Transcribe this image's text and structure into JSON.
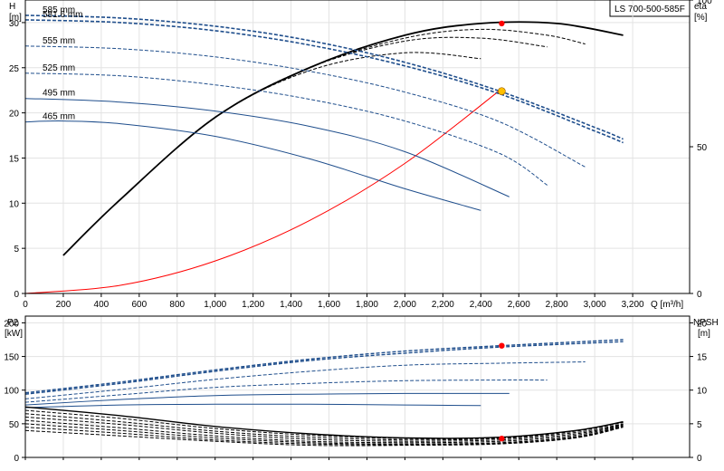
{
  "model_label": "LS 700-500-585F",
  "colors": {
    "curve_blue": "#1f4e8c",
    "efficiency": "#000000",
    "system_curve": "#ff0000",
    "duty_point": "#ff0000",
    "duty_point_head": "#ffc000"
  },
  "chart_data": [
    {
      "type": "line",
      "title": "",
      "xlabel": "Q [m³/h]",
      "ylabel_left": [
        "H",
        "[m]"
      ],
      "ylabel_right": [
        "eta",
        "[%]"
      ],
      "xlim": [
        0,
        3500
      ],
      "ylim_left": [
        0,
        32.5
      ],
      "ylim_right": [
        0,
        100
      ],
      "x_ticks": [
        0,
        200,
        400,
        600,
        800,
        1000,
        1200,
        1400,
        1600,
        1800,
        2000,
        2200,
        2400,
        2600,
        2800,
        3000,
        3200
      ],
      "x_tick_labels": [
        "0",
        "200",
        "400",
        "600",
        "800",
        "1,000",
        "1,200",
        "1,400",
        "1,600",
        "1,800",
        "2,000",
        "2,200",
        "2,400",
        "2,600",
        "2,800",
        "3,000",
        "3,200"
      ],
      "y_ticks_left": [
        0,
        5,
        10,
        15,
        20,
        25,
        30
      ],
      "y_ticks_right": [
        0,
        50,
        100
      ],
      "grid": true,
      "head_curves": [
        {
          "name": "585 mm",
          "x": [
            0,
            500,
            1000,
            1500,
            2000,
            2500,
            3000,
            3150
          ],
          "y": [
            30.8,
            30.5,
            29.6,
            28.0,
            25.6,
            22.4,
            18.4,
            17.1
          ]
        },
        {
          "name": "581.6 mm",
          "x": [
            0,
            500,
            1000,
            1500,
            2000,
            2500,
            3000,
            3150
          ],
          "y": [
            30.3,
            30.0,
            29.1,
            27.5,
            25.2,
            22.1,
            18.0,
            16.7
          ]
        },
        {
          "name": "555 mm",
          "x": [
            0,
            500,
            1000,
            1500,
            2000,
            2500,
            2950
          ],
          "y": [
            27.4,
            27.1,
            26.2,
            24.6,
            22.3,
            19.0,
            14.0
          ]
        },
        {
          "name": "525 mm",
          "x": [
            0,
            500,
            1000,
            1500,
            2000,
            2500,
            2750
          ],
          "y": [
            24.4,
            24.1,
            23.1,
            21.5,
            19.1,
            15.5,
            12.0
          ]
        },
        {
          "name": "495 mm",
          "x": [
            0,
            500,
            1000,
            1500,
            2000,
            2550
          ],
          "y": [
            21.6,
            21.2,
            20.2,
            18.5,
            15.7,
            10.7
          ]
        },
        {
          "name": "465 mm",
          "x": [
            0,
            200,
            500,
            1000,
            1500,
            2000,
            2400
          ],
          "y": [
            19.0,
            19.1,
            18.8,
            17.4,
            14.9,
            11.6,
            9.2
          ]
        }
      ],
      "system_curve": {
        "x": [
          0,
          500,
          1000,
          1500,
          2000,
          2500
        ],
        "y": [
          0,
          0.9,
          3.6,
          8.1,
          14.4,
          22.5
        ]
      },
      "efficiency_curves": [
        {
          "x": [
            200,
            500,
            1000,
            1500,
            2000,
            2400,
            2800,
            3150
          ],
          "y": [
            13,
            32,
            60,
            77,
            88,
            92,
            92,
            88
          ]
        },
        {
          "x": [
            200,
            500,
            1000,
            1500,
            2000,
            2400,
            2750,
            2950
          ],
          "y": [
            13,
            32,
            60,
            77,
            87,
            90,
            88,
            85
          ]
        },
        {
          "x": [
            200,
            500,
            1000,
            1500,
            2000,
            2400,
            2750
          ],
          "y": [
            13,
            32,
            60,
            77,
            86,
            87,
            84
          ]
        },
        {
          "x": [
            200,
            500,
            1000,
            1500,
            2000,
            2400
          ],
          "y": [
            13,
            32,
            60,
            76,
            82,
            80
          ]
        }
      ],
      "duty_point": {
        "q": 2510,
        "head": 22.4,
        "efficiency": 92
      }
    },
    {
      "type": "line",
      "title": "",
      "ylabel_left": [
        "P2",
        "[kW]"
      ],
      "ylabel_right": [
        "NPSH",
        "[m]"
      ],
      "xlim": [
        0,
        3500
      ],
      "ylim_left": [
        0,
        210
      ],
      "ylim_right": [
        0,
        21
      ],
      "y_ticks_left": [
        0,
        50,
        100,
        150,
        200
      ],
      "y_ticks_right": [
        0,
        5,
        10,
        15,
        20
      ],
      "grid": true,
      "power_curves": [
        {
          "x": [
            0,
            500,
            1000,
            1500,
            2000,
            2500,
            3150
          ],
          "y": [
            96,
            112,
            130,
            146,
            158,
            166,
            175
          ]
        },
        {
          "x": [
            0,
            500,
            1000,
            1500,
            2000,
            2500,
            3150
          ],
          "y": [
            94,
            110,
            128,
            144,
            155,
            164,
            172
          ]
        },
        {
          "x": [
            0,
            500,
            1000,
            1500,
            2000,
            2500,
            2950
          ],
          "y": [
            87,
            101,
            116,
            128,
            137,
            140,
            142
          ]
        },
        {
          "x": [
            0,
            500,
            1000,
            1500,
            2000,
            2500,
            2750
          ],
          "y": [
            82,
            93,
            104,
            110,
            114,
            115,
            115
          ]
        },
        {
          "x": [
            0,
            500,
            1000,
            1500,
            2000,
            2550
          ],
          "y": [
            78,
            86,
            92,
            94,
            95,
            95
          ]
        },
        {
          "x": [
            0,
            500,
            1000,
            1500,
            2000,
            2400
          ],
          "y": [
            74,
            78,
            79,
            79,
            78,
            77
          ]
        }
      ],
      "npsh_curves": [
        {
          "x": [
            0,
            500,
            1000,
            1500,
            2000,
            2500,
            2900,
            3150
          ],
          "y": [
            7.5,
            6.2,
            4.6,
            3.5,
            2.9,
            3.0,
            4.0,
            5.3
          ]
        },
        {
          "x": [
            0,
            500,
            1000,
            1500,
            2000,
            2500,
            2900,
            3150
          ],
          "y": [
            7.0,
            5.8,
            4.3,
            3.3,
            2.8,
            2.9,
            3.9,
            5.2
          ]
        },
        {
          "x": [
            0,
            500,
            1000,
            1500,
            2000,
            2500,
            2900,
            3150
          ],
          "y": [
            6.5,
            5.3,
            3.9,
            3.0,
            2.6,
            2.8,
            3.7,
            5.0
          ]
        },
        {
          "x": [
            0,
            500,
            1000,
            1500,
            2000,
            2500,
            2900,
            3150
          ],
          "y": [
            6.0,
            4.9,
            3.6,
            2.7,
            2.4,
            2.6,
            3.5,
            4.9
          ]
        },
        {
          "x": [
            0,
            500,
            1000,
            1500,
            2000,
            2500,
            2900,
            3150
          ],
          "y": [
            5.5,
            4.4,
            3.2,
            2.4,
            2.2,
            2.4,
            3.3,
            4.8
          ]
        },
        {
          "x": [
            0,
            500,
            1000,
            1500,
            2000,
            2500,
            2900,
            3150
          ],
          "y": [
            5.0,
            4.0,
            2.9,
            2.2,
            2.0,
            2.2,
            3.1,
            4.7
          ]
        },
        {
          "x": [
            0,
            500,
            1000,
            1500,
            2000,
            2500,
            2900,
            3150
          ],
          "y": [
            4.5,
            3.6,
            2.6,
            2.0,
            1.9,
            2.1,
            3.0,
            4.6
          ]
        },
        {
          "x": [
            0,
            500,
            1000,
            1500,
            2000,
            2500,
            2900,
            3150
          ],
          "y": [
            4.0,
            3.2,
            2.4,
            1.8,
            1.8,
            2.0,
            2.9,
            4.5
          ]
        }
      ],
      "duty_point": {
        "q": 2510,
        "power": 166,
        "npsh": 2.8
      }
    }
  ]
}
